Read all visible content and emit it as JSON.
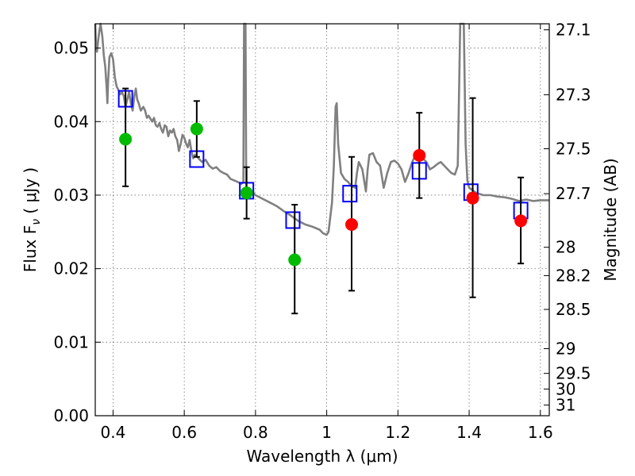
{
  "chart_data": {
    "type": "scatter",
    "xlabel": "Wavelength  λ (μm)",
    "ylabel_left": "Flux  F",
    "ylabel_left_sub": "ν",
    "ylabel_left_unit": " ( μJy )",
    "ylabel_right": "Magnitude (AB)",
    "xlim": [
      0.35,
      1.625
    ],
    "ylim": [
      0.0,
      0.0533
    ],
    "x_ticks": [
      0.4,
      0.6,
      0.8,
      1.0,
      1.2,
      1.4,
      1.6
    ],
    "x_tick_labels": [
      "0.4",
      "0.6",
      "0.8",
      "1",
      "1.2",
      "1.4",
      "1.6"
    ],
    "y_ticks": [
      0.0,
      0.01,
      0.02,
      0.03,
      0.04,
      0.05
    ],
    "y_tick_labels": [
      "0.00",
      "0.01",
      "0.02",
      "0.03",
      "0.04",
      "0.05"
    ],
    "right_ticks": [
      {
        "label": "27.1",
        "value": 27.1
      },
      {
        "label": "27.3",
        "value": 27.3
      },
      {
        "label": "27.5",
        "value": 27.5
      },
      {
        "label": "27.7",
        "value": 27.7
      },
      {
        "label": "28",
        "value": 28.0
      },
      {
        "label": "28.2",
        "value": 28.2
      },
      {
        "label": "28.5",
        "value": 28.5
      },
      {
        "label": "29",
        "value": 29.0
      },
      {
        "label": "29.5",
        "value": 29.5
      },
      {
        "label": "30",
        "value": 30.0
      },
      {
        "label": "31",
        "value": 31.0
      }
    ],
    "grid": true,
    "colors": {
      "model": "#808080",
      "green": "#00bb00",
      "red": "#ff0000",
      "model_photometry": "#0000ff",
      "errorbar": "#000000"
    },
    "model_spectrum": [
      [
        0.35,
        0.0533
      ],
      [
        0.352,
        0.0505
      ],
      [
        0.355,
        0.0495
      ],
      [
        0.358,
        0.051
      ],
      [
        0.362,
        0.0525
      ],
      [
        0.365,
        0.0533
      ],
      [
        0.37,
        0.0515
      ],
      [
        0.374,
        0.049
      ],
      [
        0.378,
        0.0475
      ],
      [
        0.382,
        0.0445
      ],
      [
        0.384,
        0.0425
      ],
      [
        0.386,
        0.0455
      ],
      [
        0.39,
        0.0488
      ],
      [
        0.395,
        0.0493
      ],
      [
        0.4,
        0.0485
      ],
      [
        0.405,
        0.046
      ],
      [
        0.41,
        0.0448
      ],
      [
        0.415,
        0.0443
      ],
      [
        0.42,
        0.0437
      ],
      [
        0.425,
        0.044
      ],
      [
        0.43,
        0.0435
      ],
      [
        0.435,
        0.042
      ],
      [
        0.44,
        0.043
      ],
      [
        0.445,
        0.044
      ],
      [
        0.45,
        0.0425
      ],
      [
        0.455,
        0.0415
      ],
      [
        0.46,
        0.0435
      ],
      [
        0.464,
        0.0445
      ],
      [
        0.468,
        0.043
      ],
      [
        0.472,
        0.0425
      ],
      [
        0.478,
        0.0415
      ],
      [
        0.485,
        0.042
      ],
      [
        0.49,
        0.0415
      ],
      [
        0.495,
        0.0405
      ],
      [
        0.5,
        0.0408
      ],
      [
        0.51,
        0.04
      ],
      [
        0.515,
        0.0405
      ],
      [
        0.52,
        0.0395
      ],
      [
        0.525,
        0.0393
      ],
      [
        0.53,
        0.0398
      ],
      [
        0.535,
        0.039
      ],
      [
        0.54,
        0.0385
      ],
      [
        0.545,
        0.0395
      ],
      [
        0.55,
        0.0393
      ],
      [
        0.555,
        0.038
      ],
      [
        0.56,
        0.0388
      ],
      [
        0.565,
        0.0385
      ],
      [
        0.57,
        0.039
      ],
      [
        0.575,
        0.038
      ],
      [
        0.58,
        0.0375
      ],
      [
        0.585,
        0.036
      ],
      [
        0.59,
        0.037
      ],
      [
        0.595,
        0.0382
      ],
      [
        0.6,
        0.0378
      ],
      [
        0.605,
        0.037
      ],
      [
        0.61,
        0.0365
      ],
      [
        0.615,
        0.0375
      ],
      [
        0.62,
        0.036
      ],
      [
        0.625,
        0.035
      ],
      [
        0.63,
        0.0355
      ],
      [
        0.64,
        0.035
      ],
      [
        0.65,
        0.0345
      ],
      [
        0.66,
        0.0348
      ],
      [
        0.67,
        0.034
      ],
      [
        0.68,
        0.0336
      ],
      [
        0.69,
        0.0338
      ],
      [
        0.7,
        0.0333
      ],
      [
        0.71,
        0.033
      ],
      [
        0.72,
        0.0328
      ],
      [
        0.73,
        0.0322
      ],
      [
        0.74,
        0.032
      ],
      [
        0.75,
        0.0318
      ],
      [
        0.76,
        0.0315
      ],
      [
        0.766,
        0.0318
      ],
      [
        0.768,
        0.0533
      ],
      [
        0.772,
        0.0533
      ],
      [
        0.774,
        0.0312
      ],
      [
        0.78,
        0.0308
      ],
      [
        0.79,
        0.0305
      ],
      [
        0.8,
        0.03
      ],
      [
        0.82,
        0.0295
      ],
      [
        0.84,
        0.029
      ],
      [
        0.86,
        0.0285
      ],
      [
        0.88,
        0.0278
      ],
      [
        0.9,
        0.0272
      ],
      [
        0.92,
        0.0265
      ],
      [
        0.94,
        0.026
      ],
      [
        0.96,
        0.0257
      ],
      [
        0.98,
        0.0253
      ],
      [
        0.99,
        0.0248
      ],
      [
        1.0,
        0.0246
      ],
      [
        1.005,
        0.025
      ],
      [
        1.015,
        0.029
      ],
      [
        1.02,
        0.034
      ],
      [
        1.025,
        0.042
      ],
      [
        1.028,
        0.0425
      ],
      [
        1.032,
        0.037
      ],
      [
        1.04,
        0.033
      ],
      [
        1.05,
        0.0322
      ],
      [
        1.06,
        0.0318
      ],
      [
        1.07,
        0.0312
      ],
      [
        1.08,
        0.031
      ],
      [
        1.085,
        0.033
      ],
      [
        1.09,
        0.0345
      ],
      [
        1.1,
        0.0335
      ],
      [
        1.11,
        0.0305
      ],
      [
        1.115,
        0.0335
      ],
      [
        1.12,
        0.0355
      ],
      [
        1.13,
        0.0357
      ],
      [
        1.14,
        0.0345
      ],
      [
        1.15,
        0.034
      ],
      [
        1.16,
        0.031
      ],
      [
        1.17,
        0.033
      ],
      [
        1.18,
        0.0345
      ],
      [
        1.19,
        0.0347
      ],
      [
        1.2,
        0.0343
      ],
      [
        1.21,
        0.0335
      ],
      [
        1.22,
        0.0318
      ],
      [
        1.23,
        0.033
      ],
      [
        1.24,
        0.0345
      ],
      [
        1.25,
        0.0355
      ],
      [
        1.26,
        0.0357
      ],
      [
        1.27,
        0.035
      ],
      [
        1.28,
        0.0345
      ],
      [
        1.29,
        0.0335
      ],
      [
        1.3,
        0.0338
      ],
      [
        1.31,
        0.0342
      ],
      [
        1.32,
        0.0345
      ],
      [
        1.33,
        0.034
      ],
      [
        1.34,
        0.0335
      ],
      [
        1.35,
        0.033
      ],
      [
        1.36,
        0.0328
      ],
      [
        1.368,
        0.034
      ],
      [
        1.372,
        0.045
      ],
      [
        1.375,
        0.0533
      ],
      [
        1.385,
        0.0533
      ],
      [
        1.39,
        0.037
      ],
      [
        1.395,
        0.032
      ],
      [
        1.4,
        0.031
      ],
      [
        1.42,
        0.0303
      ],
      [
        1.44,
        0.03
      ],
      [
        1.46,
        0.03
      ],
      [
        1.48,
        0.0298
      ],
      [
        1.5,
        0.0297
      ],
      [
        1.52,
        0.0295
      ],
      [
        1.54,
        0.0292
      ],
      [
        1.56,
        0.0294
      ],
      [
        1.58,
        0.0292
      ],
      [
        1.6,
        0.0293
      ],
      [
        1.625,
        0.0293
      ]
    ],
    "model_photometry": [
      {
        "x": 0.435,
        "y": 0.0431
      },
      {
        "x": 0.635,
        "y": 0.0349
      },
      {
        "x": 0.775,
        "y": 0.0306
      },
      {
        "x": 0.905,
        "y": 0.0266
      },
      {
        "x": 1.065,
        "y": 0.0302
      },
      {
        "x": 1.26,
        "y": 0.0333
      },
      {
        "x": 1.405,
        "y": 0.0304
      },
      {
        "x": 1.545,
        "y": 0.0279
      }
    ],
    "observed_green": [
      {
        "x": 0.435,
        "y": 0.0376,
        "err_lo": 0.0312,
        "err_hi": 0.0445
      },
      {
        "x": 0.635,
        "y": 0.039,
        "err_lo": 0.0352,
        "err_hi": 0.0428
      },
      {
        "x": 0.775,
        "y": 0.0303,
        "err_lo": 0.0268,
        "err_hi": 0.0338
      },
      {
        "x": 0.91,
        "y": 0.0212,
        "err_lo": 0.0139,
        "err_hi": 0.0287
      }
    ],
    "observed_red": [
      {
        "x": 1.07,
        "y": 0.026,
        "err_lo": 0.017,
        "err_hi": 0.0352
      },
      {
        "x": 1.26,
        "y": 0.0354,
        "err_lo": 0.0296,
        "err_hi": 0.0412
      },
      {
        "x": 1.41,
        "y": 0.0296,
        "err_lo": 0.0161,
        "err_hi": 0.0432
      },
      {
        "x": 1.545,
        "y": 0.0265,
        "err_lo": 0.0207,
        "err_hi": 0.0324
      }
    ]
  }
}
